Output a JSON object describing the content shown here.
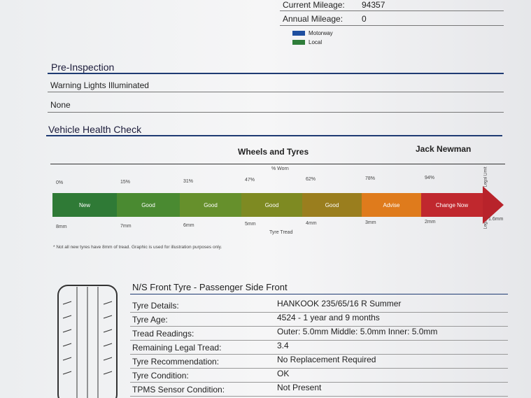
{
  "mileage": {
    "current_label": "Current Mileage:",
    "current_value": "94357",
    "annual_label": "Annual Mileage:",
    "annual_value": "0"
  },
  "legend": [
    "Motorway",
    "Local"
  ],
  "pre_inspection": {
    "title": "Pre-Inspection",
    "question": "Warning Lights Illuminated",
    "answer": "None"
  },
  "health_check": {
    "title": "Vehicle Health Check",
    "section": "Wheels and Tyres",
    "technician": "Jack Newman"
  },
  "gauge": {
    "worn_title": "% Worn",
    "worn": [
      "0%",
      "15%",
      "31%",
      "47%",
      "62%",
      "78%",
      "94%"
    ],
    "segments": [
      "New",
      "Good",
      "Good",
      "Good",
      "Good",
      "Advise",
      "Change Now"
    ],
    "tread": [
      "8mm",
      "7mm",
      "6mm",
      "5mm",
      "4mm",
      "3mm",
      "2mm",
      "1.6mm"
    ],
    "tread_title": "Tyre Tread",
    "legal_limit": "Legal Limit",
    "footnote": "* Not all new tyres have 8mm of tread. Graphic is used for illustration purposes only."
  },
  "tyre": {
    "title": "N/S Front Tyre - Passenger Side Front",
    "rows": [
      [
        "Tyre Details:",
        "HANKOOK 235/65/16 R  Summer"
      ],
      [
        "Tyre Age:",
        "4524 - 1 year and 9 months"
      ],
      [
        "Tread Readings:",
        "Outer: 5.0mm Middle: 5.0mm Inner: 5.0mm"
      ],
      [
        "Remaining Legal Tread:",
        "3.4"
      ],
      [
        "Tyre Recommendation:",
        "No Replacement Required"
      ],
      [
        "Tyre Condition:",
        "OK"
      ],
      [
        "TPMS Sensor Condition:",
        "Not Present"
      ]
    ]
  }
}
